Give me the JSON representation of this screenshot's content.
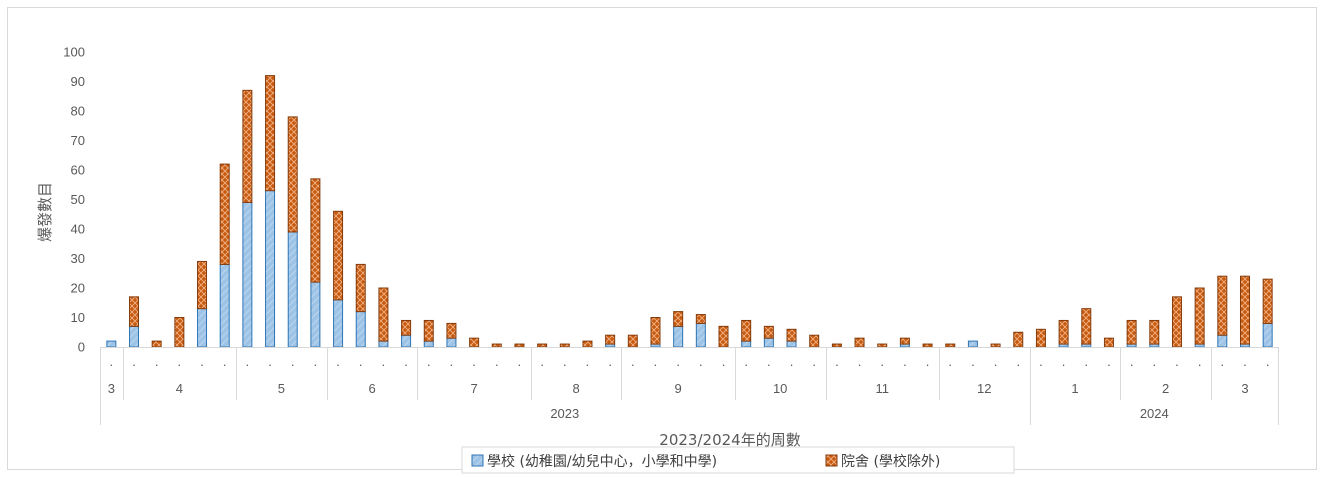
{
  "colors": {
    "school": "#9DC3E6",
    "school_edge": "#2E75B6",
    "home": "#C55A11",
    "home_edge": "#843C0C"
  },
  "chart_data": {
    "type": "bar",
    "stacked": true,
    "ylabel": "爆發數目",
    "xlabel": "2023/2024年的周數",
    "ylim": [
      0,
      100
    ],
    "yticks": [
      0,
      10,
      20,
      30,
      40,
      50,
      60,
      70,
      80,
      90,
      100
    ],
    "grid": false,
    "legend_position": "bottom",
    "week_marker": ".",
    "series": [
      {
        "name": "學校 (幼稚園/幼兒中心，小學和中學)",
        "values": [
          2,
          7,
          0,
          0,
          13,
          28,
          49,
          53,
          39,
          22,
          16,
          12,
          2,
          4,
          2,
          3,
          0,
          0,
          0,
          0,
          0,
          0,
          1,
          0,
          1,
          7,
          8,
          0,
          2,
          3,
          2,
          0,
          0,
          0,
          0,
          1,
          0,
          0,
          2,
          0,
          0,
          0,
          1,
          1,
          0,
          1,
          1,
          0,
          1,
          4,
          1,
          8
        ]
      },
      {
        "name": "院舍 (學校除外)",
        "values": [
          0,
          10,
          2,
          10,
          16,
          34,
          38,
          39,
          39,
          35,
          30,
          16,
          18,
          5,
          7,
          5,
          3,
          1,
          1,
          1,
          1,
          2,
          3,
          4,
          9,
          5,
          3,
          7,
          7,
          4,
          4,
          4,
          1,
          3,
          1,
          2,
          1,
          1,
          0,
          1,
          5,
          6,
          8,
          12,
          3,
          8,
          8,
          17,
          19,
          20,
          23,
          15
        ]
      }
    ],
    "months": [
      {
        "label": "3",
        "weeks": 1
      },
      {
        "label": "4",
        "weeks": 5
      },
      {
        "label": "5",
        "weeks": 4
      },
      {
        "label": "6",
        "weeks": 4
      },
      {
        "label": "7",
        "weeks": 5
      },
      {
        "label": "8",
        "weeks": 4
      },
      {
        "label": "9",
        "weeks": 5
      },
      {
        "label": "10",
        "weeks": 4
      },
      {
        "label": "11",
        "weeks": 5
      },
      {
        "label": "12",
        "weeks": 4
      },
      {
        "label": "1",
        "weeks": 4
      },
      {
        "label": "2",
        "weeks": 4
      },
      {
        "label": "3",
        "weeks": 3
      }
    ],
    "years": [
      {
        "label": "2023",
        "months": 10
      },
      {
        "label": "2024",
        "months": 3
      }
    ]
  }
}
